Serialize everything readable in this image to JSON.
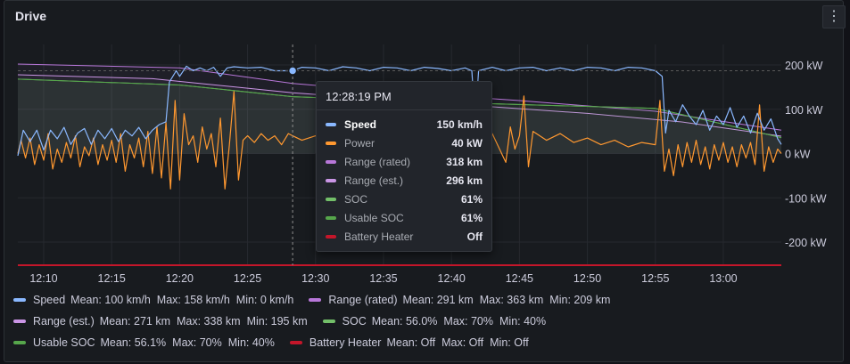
{
  "panel": {
    "title": "Drive",
    "menu_icon": "kebab-menu-icon"
  },
  "chart_data": {
    "type": "line",
    "x_ticks": [
      "12:10",
      "12:15",
      "12:20",
      "12:25",
      "12:30",
      "12:35",
      "12:40",
      "12:45",
      "12:50",
      "12:55",
      "13:00"
    ],
    "y_right_ticks": [
      "200 kW",
      "100 kW",
      "0 kW",
      "-100 kW",
      "-200 kW"
    ],
    "y_right_values": [
      200,
      100,
      0,
      -100,
      -200
    ],
    "xlim": [
      "12:08:06",
      "13:04:16"
    ],
    "ylim_kw": [
      -250,
      210
    ],
    "grid": true,
    "series": [
      {
        "name": "Speed",
        "color": "#8ab8ff",
        "unit": "km/h",
        "points": [
          [
            "12:08:06",
            0
          ],
          [
            "12:08:30",
            45
          ],
          [
            "12:09:00",
            25
          ],
          [
            "12:09:30",
            45
          ],
          [
            "12:10:00",
            10
          ],
          [
            "12:10:30",
            45
          ],
          [
            "12:11:00",
            30
          ],
          [
            "12:11:30",
            50
          ],
          [
            "12:12:00",
            20
          ],
          [
            "12:12:30",
            40
          ],
          [
            "12:13:00",
            48
          ],
          [
            "12:13:30",
            20
          ],
          [
            "12:14:00",
            45
          ],
          [
            "12:14:30",
            30
          ],
          [
            "12:15:00",
            48
          ],
          [
            "12:15:30",
            25
          ],
          [
            "12:16:00",
            45
          ],
          [
            "12:16:30",
            35
          ],
          [
            "12:17:00",
            50
          ],
          [
            "12:17:30",
            30
          ],
          [
            "12:18:00",
            45
          ],
          [
            "12:18:30",
            55
          ],
          [
            "12:19:00",
            60
          ],
          [
            "12:19:15",
            130
          ],
          [
            "12:19:45",
            150
          ],
          [
            "12:20:00",
            140
          ],
          [
            "12:20:30",
            158
          ],
          [
            "12:21:00",
            150
          ],
          [
            "12:21:30",
            155
          ],
          [
            "12:22:00",
            150
          ],
          [
            "12:22:30",
            156
          ],
          [
            "12:23:00",
            140
          ],
          [
            "12:23:30",
            155
          ],
          [
            "12:24:00",
            157
          ],
          [
            "12:25:00",
            155
          ],
          [
            "12:26:00",
            156
          ],
          [
            "12:27:00",
            150
          ],
          [
            "12:28:19",
            150
          ],
          [
            "12:29:00",
            156
          ],
          [
            "12:30:00",
            155
          ],
          [
            "12:31:00",
            150
          ],
          [
            "12:32:00",
            157
          ],
          [
            "12:33:00",
            155
          ],
          [
            "12:34:00",
            150
          ],
          [
            "12:35:00",
            156
          ],
          [
            "12:36:00",
            155
          ],
          [
            "12:37:00",
            150
          ],
          [
            "12:38:00",
            156
          ],
          [
            "12:39:00",
            154
          ],
          [
            "12:40:00",
            150
          ],
          [
            "12:41:00",
            155
          ],
          [
            "12:41:30",
            150
          ],
          [
            "12:41:45",
            60
          ],
          [
            "12:42:00",
            150
          ],
          [
            "12:43:00",
            156
          ],
          [
            "12:44:00",
            150
          ],
          [
            "12:45:00",
            155
          ],
          [
            "12:46:00",
            156
          ],
          [
            "12:47:00",
            150
          ],
          [
            "12:48:00",
            155
          ],
          [
            "12:49:00",
            150
          ],
          [
            "12:50:00",
            156
          ],
          [
            "12:51:00",
            155
          ],
          [
            "12:52:00",
            150
          ],
          [
            "12:53:00",
            156
          ],
          [
            "12:54:00",
            155
          ],
          [
            "12:55:00",
            150
          ],
          [
            "12:55:30",
            140
          ],
          [
            "12:55:45",
            40
          ],
          [
            "12:56:00",
            80
          ],
          [
            "12:56:30",
            60
          ],
          [
            "12:57:00",
            90
          ],
          [
            "12:57:30",
            70
          ],
          [
            "12:58:00",
            55
          ],
          [
            "12:58:30",
            80
          ],
          [
            "12:59:00",
            45
          ],
          [
            "12:59:30",
            70
          ],
          [
            "13:00:00",
            55
          ],
          [
            "13:00:30",
            85
          ],
          [
            "13:01:00",
            50
          ],
          [
            "13:01:30",
            70
          ],
          [
            "13:02:00",
            40
          ],
          [
            "13:02:30",
            75
          ],
          [
            "13:03:00",
            45
          ],
          [
            "13:03:30",
            65
          ],
          [
            "13:04:00",
            30
          ],
          [
            "13:04:16",
            20
          ]
        ]
      },
      {
        "name": "Power",
        "color": "#ff9830",
        "unit": "kW",
        "points": [
          [
            "12:08:06",
            0
          ],
          [
            "12:08:20",
            30
          ],
          [
            "12:08:40",
            -10
          ],
          [
            "12:09:00",
            35
          ],
          [
            "12:09:20",
            -25
          ],
          [
            "12:09:40",
            20
          ],
          [
            "12:10:00",
            -15
          ],
          [
            "12:10:20",
            45
          ],
          [
            "12:10:40",
            -35
          ],
          [
            "12:11:00",
            10
          ],
          [
            "12:11:20",
            -20
          ],
          [
            "12:11:40",
            25
          ],
          [
            "12:12:00",
            -10
          ],
          [
            "12:12:20",
            40
          ],
          [
            "12:12:40",
            -30
          ],
          [
            "12:13:00",
            15
          ],
          [
            "12:13:20",
            -5
          ],
          [
            "12:13:40",
            35
          ],
          [
            "12:14:00",
            -25
          ],
          [
            "12:14:20",
            20
          ],
          [
            "12:14:40",
            -15
          ],
          [
            "12:15:00",
            30
          ],
          [
            "12:15:20",
            -20
          ],
          [
            "12:15:40",
            45
          ],
          [
            "12:16:00",
            -40
          ],
          [
            "12:16:20",
            20
          ],
          [
            "12:16:40",
            -10
          ],
          [
            "12:17:00",
            35
          ],
          [
            "12:17:20",
            -30
          ],
          [
            "12:17:40",
            50
          ],
          [
            "12:18:00",
            -45
          ],
          [
            "12:18:20",
            60
          ],
          [
            "12:18:40",
            -55
          ],
          [
            "12:19:00",
            70
          ],
          [
            "12:19:20",
            -80
          ],
          [
            "12:19:40",
            120
          ],
          [
            "12:20:00",
            -60
          ],
          [
            "12:20:20",
            90
          ],
          [
            "12:20:40",
            20
          ],
          [
            "12:21:00",
            40
          ],
          [
            "12:21:20",
            -20
          ],
          [
            "12:21:40",
            60
          ],
          [
            "12:22:00",
            10
          ],
          [
            "12:22:20",
            45
          ],
          [
            "12:22:40",
            -30
          ],
          [
            "12:23:00",
            80
          ],
          [
            "12:23:20",
            -80
          ],
          [
            "12:23:40",
            20
          ],
          [
            "12:24:00",
            140
          ],
          [
            "12:24:20",
            -60
          ],
          [
            "12:24:40",
            30
          ],
          [
            "12:25:00",
            40
          ],
          [
            "12:25:30",
            25
          ],
          [
            "12:26:00",
            45
          ],
          [
            "12:26:30",
            30
          ],
          [
            "12:27:00",
            40
          ],
          [
            "12:27:30",
            20
          ],
          [
            "12:28:00",
            45
          ],
          [
            "12:28:19",
            40
          ],
          [
            "12:29:00",
            30
          ],
          [
            "12:30:00",
            40
          ],
          [
            "12:31:00",
            25
          ],
          [
            "12:32:00",
            45
          ],
          [
            "12:33:00",
            30
          ],
          [
            "12:34:00",
            40
          ],
          [
            "12:35:00",
            25
          ],
          [
            "12:36:00",
            120
          ],
          [
            "12:36:20",
            20
          ],
          [
            "12:37:00",
            40
          ],
          [
            "12:38:00",
            30
          ],
          [
            "12:39:00",
            45
          ],
          [
            "12:40:00",
            30
          ],
          [
            "12:41:00",
            40
          ],
          [
            "12:41:30",
            0
          ],
          [
            "12:42:00",
            35
          ],
          [
            "12:43:00",
            45
          ],
          [
            "12:44:00",
            -20
          ],
          [
            "12:44:20",
            60
          ],
          [
            "12:44:40",
            10
          ],
          [
            "12:45:00",
            40
          ],
          [
            "12:45:20",
            130
          ],
          [
            "12:45:40",
            -30
          ],
          [
            "12:46:00",
            50
          ],
          [
            "12:47:00",
            30
          ],
          [
            "12:48:00",
            45
          ],
          [
            "12:49:00",
            25
          ],
          [
            "12:50:00",
            35
          ],
          [
            "12:51:00",
            20
          ],
          [
            "12:52:00",
            30
          ],
          [
            "12:53:00",
            15
          ],
          [
            "12:54:00",
            25
          ],
          [
            "12:55:00",
            20
          ],
          [
            "12:55:20",
            120
          ],
          [
            "12:55:40",
            -40
          ],
          [
            "12:56:00",
            10
          ],
          [
            "12:56:20",
            -50
          ],
          [
            "12:56:40",
            20
          ],
          [
            "12:57:00",
            -30
          ],
          [
            "12:57:20",
            25
          ],
          [
            "12:57:40",
            -20
          ],
          [
            "12:58:00",
            30
          ],
          [
            "12:58:20",
            -25
          ],
          [
            "12:58:40",
            15
          ],
          [
            "12:59:00",
            -35
          ],
          [
            "12:59:20",
            20
          ],
          [
            "12:59:40",
            -15
          ],
          [
            "13:00:00",
            25
          ],
          [
            "13:00:20",
            -20
          ],
          [
            "13:00:40",
            15
          ],
          [
            "13:01:00",
            -30
          ],
          [
            "13:01:20",
            20
          ],
          [
            "13:01:40",
            -10
          ],
          [
            "13:02:00",
            25
          ],
          [
            "13:02:20",
            -25
          ],
          [
            "13:02:40",
            110
          ],
          [
            "13:03:00",
            -40
          ],
          [
            "13:03:20",
            15
          ],
          [
            "13:03:40",
            -20
          ],
          [
            "13:04:00",
            10
          ],
          [
            "13:04:16",
            0
          ]
        ]
      },
      {
        "name": "Range (rated)",
        "color": "#b877d9",
        "unit": "km",
        "points": [
          [
            "12:08:06",
            363
          ],
          [
            "12:20:00",
            354
          ],
          [
            "12:28:19",
            318
          ],
          [
            "12:35:00",
            300
          ],
          [
            "12:45:00",
            278
          ],
          [
            "12:55:00",
            253
          ],
          [
            "13:04:16",
            209
          ]
        ]
      },
      {
        "name": "Range (est.)",
        "color": "#ca95e5",
        "unit": "km",
        "points": [
          [
            "12:08:06",
            338
          ],
          [
            "12:18:00",
            329
          ],
          [
            "12:28:19",
            296
          ],
          [
            "12:40:00",
            270
          ],
          [
            "12:50:00",
            248
          ],
          [
            "12:57:00",
            228
          ],
          [
            "13:04:16",
            195
          ]
        ]
      },
      {
        "name": "SOC",
        "color": "#73bf69",
        "unit": "%",
        "points": [
          [
            "12:08:06",
            70
          ],
          [
            "12:20:00",
            67
          ],
          [
            "12:28:19",
            61
          ],
          [
            "12:40:00",
            58
          ],
          [
            "12:55:00",
            55
          ],
          [
            "13:04:16",
            40
          ]
        ]
      },
      {
        "name": "Usable SOC",
        "color": "#56a64b",
        "unit": "%",
        "points": [
          [
            "12:08:06",
            70
          ],
          [
            "12:20:00",
            67
          ],
          [
            "12:28:19",
            61
          ],
          [
            "12:40:00",
            58
          ],
          [
            "12:55:00",
            55
          ],
          [
            "13:04:16",
            40
          ]
        ]
      },
      {
        "name": "Battery Heater",
        "color": "#c4162a",
        "unit": "",
        "points": [
          [
            "12:08:06",
            0
          ],
          [
            "13:04:16",
            0
          ]
        ]
      }
    ]
  },
  "tooltip": {
    "time": "12:28:19 PM",
    "active_index": 0,
    "rows": [
      {
        "name": "Speed",
        "value": "150 km/h",
        "color": "#8ab8ff"
      },
      {
        "name": "Power",
        "value": "40 kW",
        "color": "#ff9830"
      },
      {
        "name": "Range (rated)",
        "value": "318 km",
        "color": "#b877d9"
      },
      {
        "name": "Range (est.)",
        "value": "296 km",
        "color": "#ca95e5"
      },
      {
        "name": "SOC",
        "value": "61%",
        "color": "#73bf69"
      },
      {
        "name": "Usable SOC",
        "value": "61%",
        "color": "#56a64b"
      },
      {
        "name": "Battery Heater",
        "value": "Off",
        "color": "#c4162a"
      }
    ]
  },
  "legend": {
    "rows": [
      [
        {
          "name": "Speed",
          "color": "#8ab8ff",
          "stats": [
            "Mean: 100 km/h",
            "Max: 158 km/h",
            "Min: 0 km/h"
          ]
        },
        {
          "name": "Range (rated)",
          "color": "#b877d9",
          "stats": [
            "Mean: 291 km",
            "Max: 363 km",
            "Min: 209 km"
          ]
        }
      ],
      [
        {
          "name": "Range (est.)",
          "color": "#ca95e5",
          "stats": [
            "Mean: 271 km",
            "Max: 338 km",
            "Min: 195 km"
          ]
        },
        {
          "name": "SOC",
          "color": "#73bf69",
          "stats": [
            "Mean: 56.0%",
            "Max: 70%",
            "Min: 40%"
          ]
        }
      ],
      [
        {
          "name": "Usable SOC",
          "color": "#56a64b",
          "stats": [
            "Mean: 56.1%",
            "Max: 70%",
            "Min: 40%"
          ]
        },
        {
          "name": "Battery Heater",
          "color": "#c4162a",
          "stats": [
            "Mean: Off",
            "Max: Off",
            "Min: Off"
          ]
        }
      ]
    ]
  }
}
